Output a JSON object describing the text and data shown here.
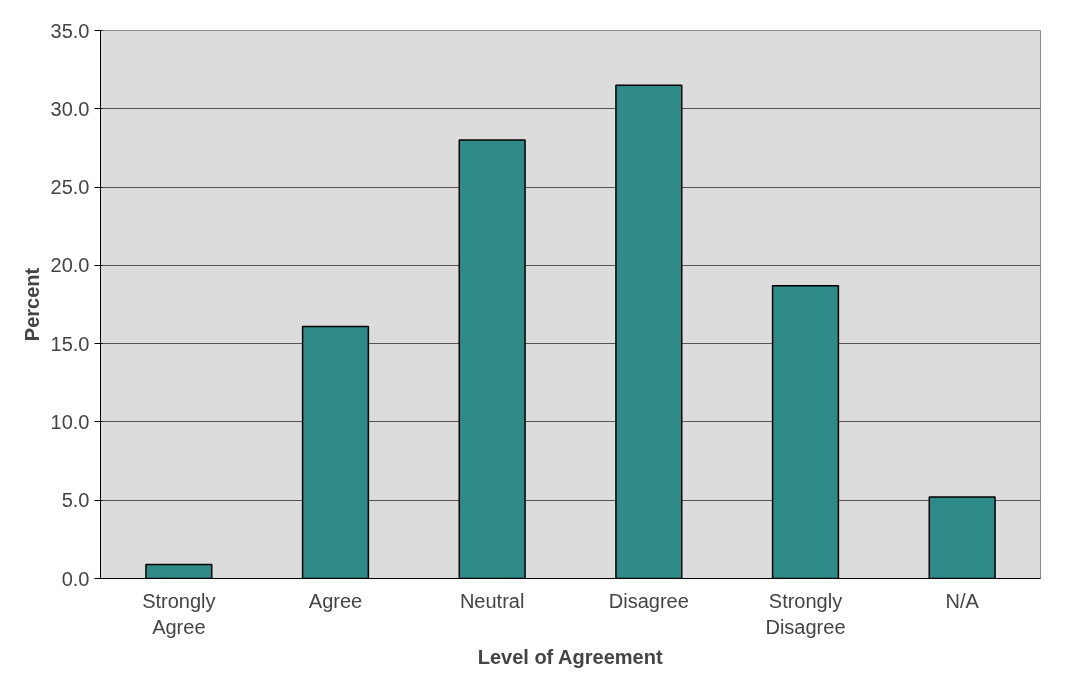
{
  "chart_data": {
    "type": "bar",
    "xlabel": "Level of Agreement",
    "ylabel": "Percent",
    "categories": [
      "Strongly Agree",
      "Agree",
      "Neutral",
      "Disagree",
      "Strongly Disagree",
      "N/A"
    ],
    "values": [
      0.9,
      16.1,
      28.0,
      31.5,
      18.7,
      5.2
    ],
    "color": "#2e8b87",
    "ylim": [
      0,
      35
    ],
    "yticks": [
      {
        "value": 0,
        "label": "0.0"
      },
      {
        "value": 5,
        "label": "5.0"
      },
      {
        "value": 10,
        "label": "10.0"
      },
      {
        "value": 15,
        "label": "15.0"
      },
      {
        "value": 20,
        "label": "20.0"
      },
      {
        "value": 25,
        "label": "25.0"
      },
      {
        "value": 30,
        "label": "30.0"
      },
      {
        "value": 35,
        "label": "35.0"
      }
    ],
    "grid": "y"
  }
}
